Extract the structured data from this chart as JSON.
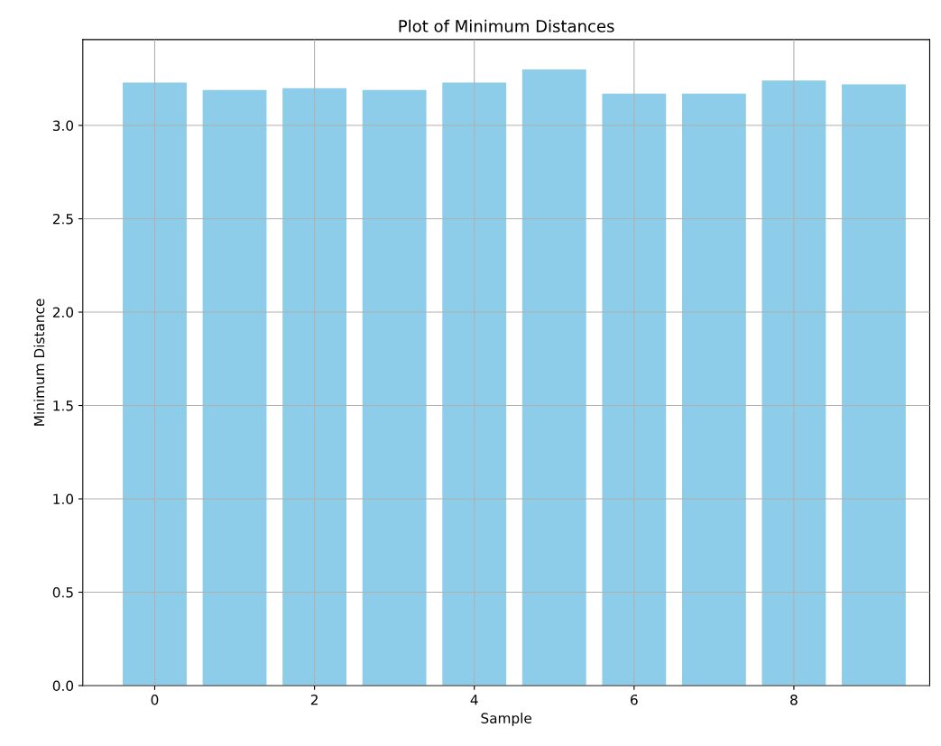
{
  "chart_data": {
    "type": "bar",
    "title": "Plot of Minimum Distances",
    "xlabel": "Sample",
    "ylabel": "Minimum Distance",
    "x": [
      0,
      1,
      2,
      3,
      4,
      5,
      6,
      7,
      8,
      9
    ],
    "values": [
      3.23,
      3.19,
      3.2,
      3.19,
      3.23,
      3.3,
      3.17,
      3.17,
      3.24,
      3.22
    ],
    "color": "#8ecde9",
    "xlim": [
      -0.9,
      9.7
    ],
    "xticks": [
      0,
      2,
      4,
      6,
      8
    ],
    "ylim": [
      0,
      3.46
    ],
    "yticks": [
      {
        "value": 0,
        "label": "0.0"
      },
      0.5,
      {
        "value": 1,
        "label": "1.0"
      },
      1.5,
      {
        "value": 2,
        "label": "2.0"
      },
      2.5,
      {
        "value": 3,
        "label": "3.0"
      }
    ],
    "grid": true
  }
}
